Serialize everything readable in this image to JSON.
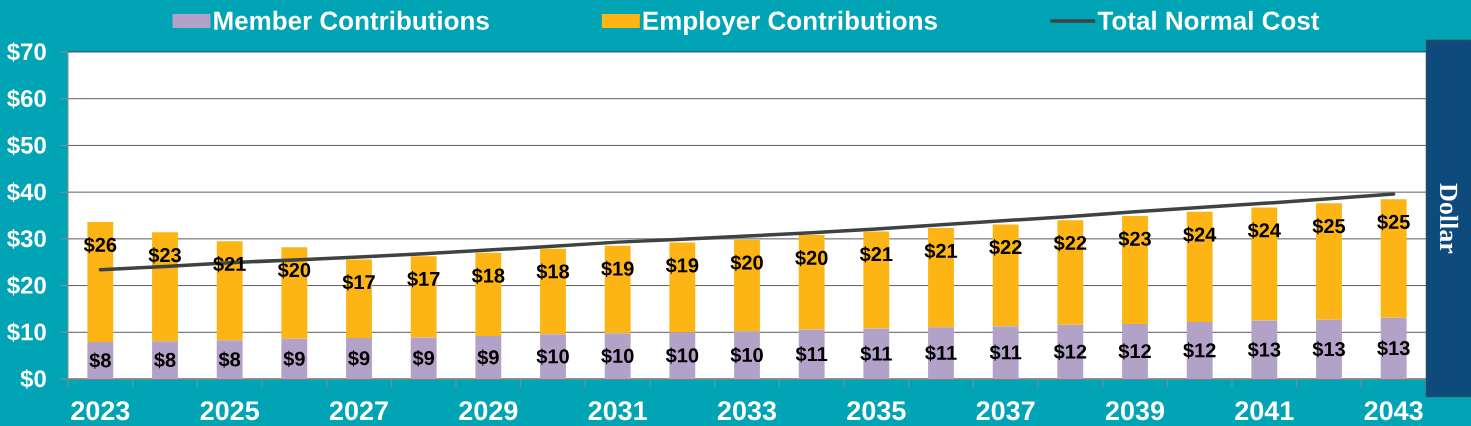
{
  "chart_data": {
    "type": "bar",
    "ylabel": "Dollar",
    "stacked": true,
    "legend": "top",
    "grid": "y",
    "categories": [
      "2023",
      null,
      "2025",
      null,
      "2027",
      null,
      "2029",
      null,
      "2031",
      null,
      "2033",
      null,
      "2035",
      null,
      "2037",
      null,
      "2039",
      null,
      "2041",
      null,
      "2043"
    ],
    "ylim": [
      0,
      70
    ],
    "yticks": [
      {
        "value": 0,
        "label": "$0"
      },
      {
        "value": 10,
        "label": "$10"
      },
      {
        "value": 20,
        "label": "$20"
      },
      {
        "value": 30,
        "label": "$30"
      },
      {
        "value": 40,
        "label": "$40"
      },
      {
        "value": 50,
        "label": "$50"
      },
      {
        "value": 60,
        "label": "$60"
      },
      {
        "value": 70,
        "label": "$70"
      }
    ],
    "series": [
      {
        "name": "Member Contributions",
        "color": "#b3a2c7",
        "values": [
          7.9,
          8.1,
          8.3,
          8.6,
          8.8,
          8.9,
          9.2,
          9.6,
          9.8,
          10.0,
          10.2,
          10.6,
          10.8,
          11.1,
          11.3,
          11.6,
          11.8,
          12.2,
          12.5,
          12.7,
          13.1
        ],
        "value_labels": [
          "$8",
          "$8",
          "$8",
          "$9",
          "$9",
          "$9",
          "$9",
          "$10",
          "$10",
          "$10",
          "$10",
          "$11",
          "$11",
          "$11",
          "$11",
          "$12",
          "$12",
          "$12",
          "$13",
          "$13",
          "$13"
        ]
      },
      {
        "name": "Employer Contributions",
        "color": "#fcb514",
        "values": [
          25.7,
          23.3,
          21.2,
          19.6,
          16.8,
          17.4,
          17.8,
          18.3,
          18.7,
          19.2,
          19.6,
          20.2,
          20.8,
          21.2,
          21.8,
          22.4,
          23.1,
          23.6,
          24.2,
          24.9,
          25.4
        ],
        "value_labels": [
          "$26",
          "$23",
          "$21",
          "$20",
          "$17",
          "$17",
          "$18",
          "$18",
          "$19",
          "$19",
          "$20",
          "$20",
          "$21",
          "$21",
          "$22",
          "$22",
          "$23",
          "$24",
          "$24",
          "$25",
          "$25"
        ]
      },
      {
        "name": "Total Normal Cost",
        "type": "line",
        "color": "#3c4342",
        "values": [
          23.4,
          24.1,
          24.9,
          25.5,
          26.1,
          26.8,
          27.6,
          28.4,
          29.3,
          29.9,
          30.6,
          31.3,
          32.1,
          33.0,
          33.9,
          34.8,
          35.8,
          36.7,
          37.6,
          38.6,
          39.6
        ]
      }
    ]
  }
}
